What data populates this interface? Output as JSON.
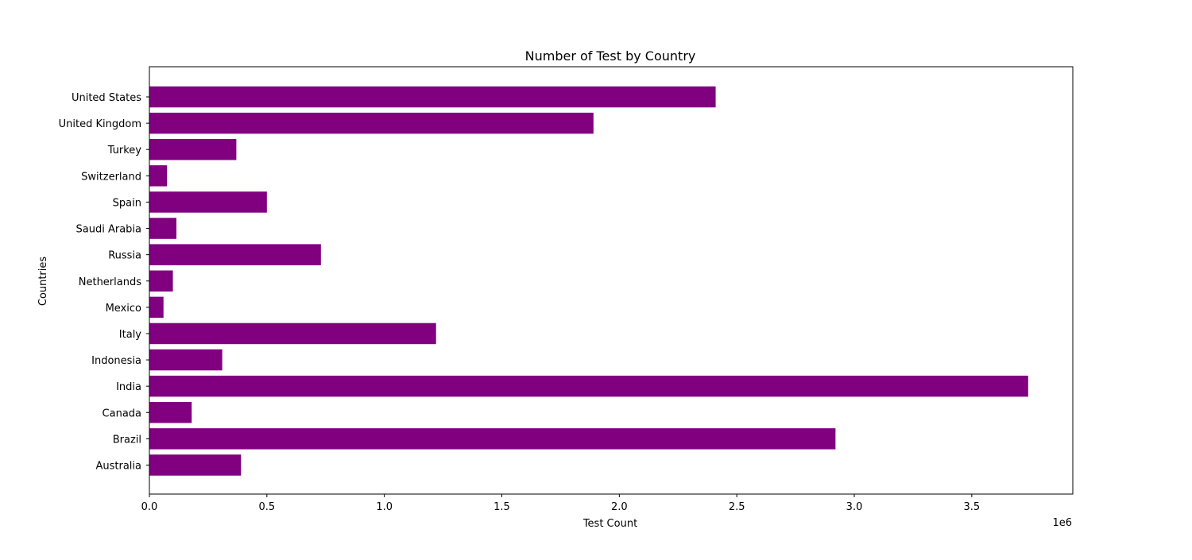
{
  "chart_data": {
    "type": "bar",
    "orientation": "horizontal",
    "title": "Number of Test by Country",
    "xlabel": "Test Count",
    "ylabel": "Countries",
    "x_offset_label": "1e6",
    "bar_color": "#800080",
    "xlim": [
      0,
      3.93
    ],
    "x_ticks": [
      0.0,
      0.5,
      1.0,
      1.5,
      2.0,
      2.5,
      3.0,
      3.5
    ],
    "x_tick_labels": [
      "0.0",
      "0.5",
      "1.0",
      "1.5",
      "2.0",
      "2.5",
      "3.0",
      "3.5"
    ],
    "categories": [
      "United States",
      "United Kingdom",
      "Turkey",
      "Switzerland",
      "Spain",
      "Saudi Arabia",
      "Russia",
      "Netherlands",
      "Mexico",
      "Italy",
      "Indonesia",
      "India",
      "Canada",
      "Brazil",
      "Australia"
    ],
    "values": [
      2.41,
      1.89,
      0.37,
      0.075,
      0.5,
      0.115,
      0.73,
      0.1,
      0.06,
      1.22,
      0.31,
      3.74,
      0.18,
      2.92,
      0.39
    ],
    "grid": false,
    "legend": false
  }
}
